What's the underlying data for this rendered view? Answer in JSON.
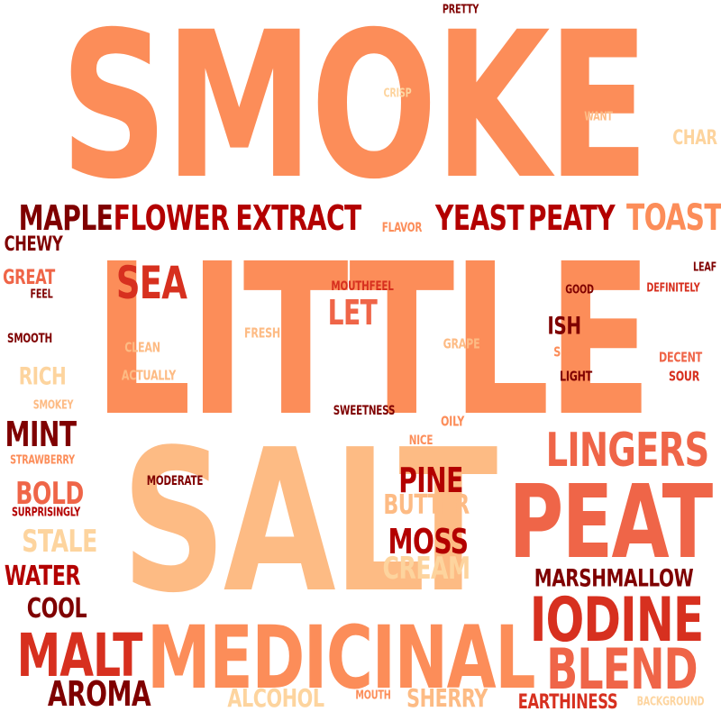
{
  "words": [
    {
      "text": "SMOKE",
      "color": "#fc8d59"
    },
    {
      "text": "LITTLE",
      "color": "#fc8d59"
    },
    {
      "text": "SALT",
      "color": "#fdbb84"
    },
    {
      "text": "PEAT",
      "color": "#ef6548"
    },
    {
      "text": "MEDICINAL",
      "color": "#fc8d59"
    },
    {
      "text": "IODINE",
      "color": "#d7301f"
    },
    {
      "text": "BLEND",
      "color": "#ef6548"
    },
    {
      "text": "MALT",
      "color": "#d7301f"
    },
    {
      "text": "LINGERS",
      "color": "#ef6548"
    },
    {
      "text": "SEA",
      "color": "#d7301f"
    },
    {
      "text": "TOAST",
      "color": "#fc8d59"
    },
    {
      "text": "MAPLE",
      "color": "#7f0000"
    },
    {
      "text": "FLOWER",
      "color": "#b30000"
    },
    {
      "text": "EXTRACT",
      "color": "#b30000"
    },
    {
      "text": "YEAST",
      "color": "#b30000"
    },
    {
      "text": "PEATY",
      "color": "#b30000"
    },
    {
      "text": "AROMA",
      "color": "#7f0000"
    },
    {
      "text": "MOSS",
      "color": "#b30000"
    },
    {
      "text": "PINE",
      "color": "#b30000"
    },
    {
      "text": "MINT",
      "color": "#7f0000"
    },
    {
      "text": "LET",
      "color": "#ef6548"
    },
    {
      "text": "BOLD",
      "color": "#ef6548"
    },
    {
      "text": "STALE",
      "color": "#fdd49e"
    },
    {
      "text": "CREAM",
      "color": "#fdd49e"
    },
    {
      "text": "BUTTER",
      "color": "#fdbb84"
    },
    {
      "text": "ALCOHOL",
      "color": "#fdd49e"
    },
    {
      "text": "SHERRY",
      "color": "#fdbb84"
    },
    {
      "text": "WATER",
      "color": "#b30000"
    },
    {
      "text": "COOL",
      "color": "#7f0000"
    },
    {
      "text": "MARSHMALLOW",
      "color": "#7f0000"
    },
    {
      "text": "ISH",
      "color": "#7f0000"
    },
    {
      "text": "RICH",
      "color": "#fdd49e"
    },
    {
      "text": "CHEWY",
      "color": "#7f0000"
    },
    {
      "text": "GREAT",
      "color": "#ef6548"
    },
    {
      "text": "EARTHINESS",
      "color": "#d7301f"
    },
    {
      "text": "CHAR",
      "color": "#fdd49e"
    },
    {
      "text": "FLAVOR",
      "color": "#fc8d59"
    },
    {
      "text": "MOUTHFEEL",
      "color": "#d7301f"
    },
    {
      "text": "FRESH",
      "color": "#fdbb84"
    },
    {
      "text": "CLEAN",
      "color": "#fdbb84"
    },
    {
      "text": "ACTUALLY",
      "color": "#fdbb84"
    },
    {
      "text": "GRAPE",
      "color": "#fdbb84"
    },
    {
      "text": "SIP",
      "color": "#fc8d59"
    },
    {
      "text": "LIGHT",
      "color": "#7f0000"
    },
    {
      "text": "DECENT",
      "color": "#ef6548"
    },
    {
      "text": "SOUR",
      "color": "#d7301f"
    },
    {
      "text": "SWEETNESS",
      "color": "#7f0000"
    },
    {
      "text": "OILY",
      "color": "#fc8d59"
    },
    {
      "text": "NICE",
      "color": "#fc8d59"
    },
    {
      "text": "MODERATE",
      "color": "#7f0000"
    },
    {
      "text": "SURPRISINGLY",
      "color": "#b30000"
    },
    {
      "text": "STRAWBERRY",
      "color": "#fc8d59"
    },
    {
      "text": "SMOKEY",
      "color": "#fdbb84"
    },
    {
      "text": "SMOOTH",
      "color": "#7f0000"
    },
    {
      "text": "FEEL",
      "color": "#7f0000"
    },
    {
      "text": "GOOD",
      "color": "#7f0000"
    },
    {
      "text": "DEFINITELY",
      "color": "#d7301f"
    },
    {
      "text": "LEAF",
      "color": "#7f0000"
    },
    {
      "text": "CRISP",
      "color": "#fdd49e"
    },
    {
      "text": "WANT",
      "color": "#fdbb84"
    },
    {
      "text": "PRETTY",
      "color": "#7f0000"
    },
    {
      "text": "MOUTH",
      "color": "#fc8d59"
    },
    {
      "text": "BACKGROUND",
      "color": "#fdd49e"
    }
  ]
}
